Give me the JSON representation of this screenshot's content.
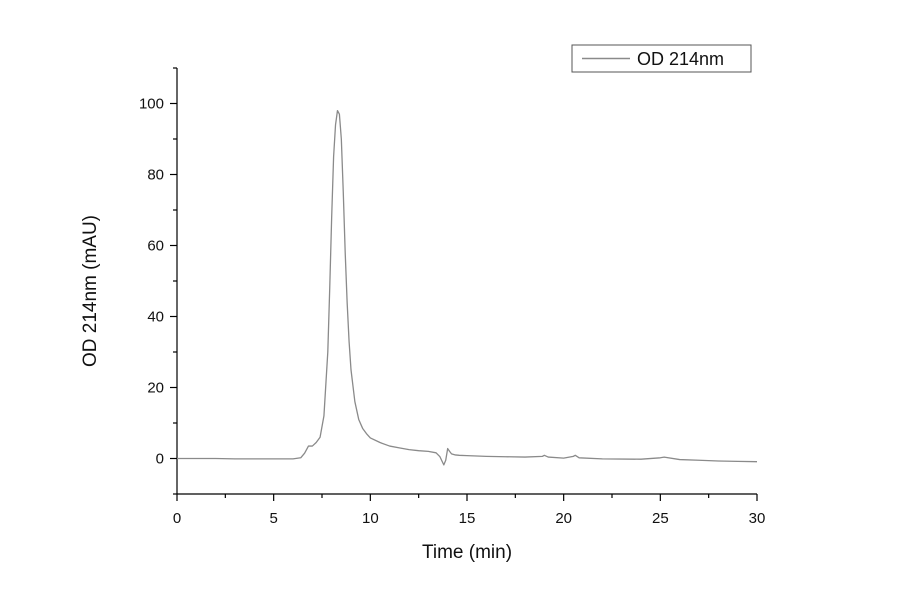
{
  "chart_data": {
    "type": "line",
    "xlabel": "Time (min)",
    "ylabel": "OD 214nm (mAU)",
    "xlim": [
      0,
      30
    ],
    "ylim": [
      -10,
      110
    ],
    "xticks": [
      0,
      5,
      10,
      15,
      20,
      25,
      30
    ],
    "yticks": [
      0,
      20,
      40,
      60,
      80,
      100
    ],
    "grid": false,
    "legend_position": "top-right",
    "series": [
      {
        "name": "OD 214nm",
        "color": "#8a8a8a",
        "x": [
          0,
          1,
          2,
          3,
          4,
          5,
          6,
          6.4,
          6.6,
          6.8,
          7.0,
          7.2,
          7.4,
          7.6,
          7.8,
          7.9,
          8.0,
          8.1,
          8.2,
          8.3,
          8.4,
          8.5,
          8.6,
          8.7,
          8.8,
          8.9,
          9.0,
          9.2,
          9.4,
          9.6,
          9.8,
          10.0,
          10.5,
          11.0,
          11.5,
          12.0,
          12.5,
          13.0,
          13.4,
          13.6,
          13.8,
          13.9,
          14.0,
          14.1,
          14.2,
          14.4,
          14.6,
          15.0,
          16.0,
          17.0,
          18.0,
          18.9,
          19.0,
          19.2,
          20.0,
          20.5,
          20.6,
          20.8,
          22.0,
          24.0,
          25.0,
          25.2,
          26.0,
          27.0,
          28.0,
          29.0,
          30.0
        ],
        "y": [
          0,
          0,
          0,
          -0.1,
          -0.1,
          -0.1,
          -0.1,
          0.2,
          1.5,
          3.5,
          3.5,
          4.5,
          6,
          12,
          30,
          48,
          68,
          85,
          94,
          98,
          97,
          90,
          75,
          58,
          44,
          33,
          25,
          16,
          11,
          8.5,
          7,
          5.8,
          4.5,
          3.5,
          3,
          2.5,
          2.2,
          2,
          1.6,
          0.5,
          -1.8,
          -0.5,
          2.8,
          2,
          1.3,
          1,
          0.9,
          0.8,
          0.6,
          0.5,
          0.4,
          0.6,
          0.9,
          0.4,
          0.1,
          0.6,
          0.9,
          0.2,
          -0.1,
          -0.2,
          0.2,
          0.4,
          -0.3,
          -0.5,
          -0.7,
          -0.8,
          -0.9
        ]
      }
    ]
  }
}
